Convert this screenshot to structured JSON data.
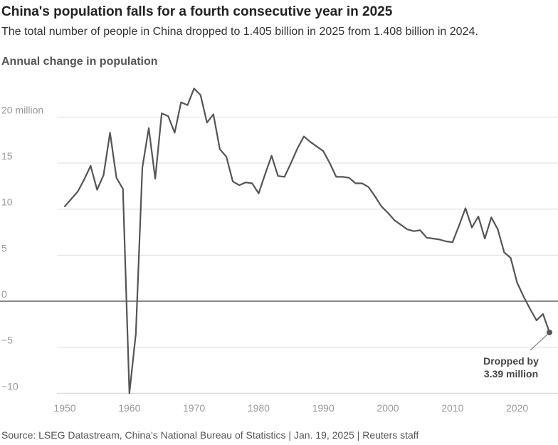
{
  "header": {
    "title": "China's population falls for a fourth consecutive year in 2025",
    "subtitle": "The total number of people in China dropped to 1.405 billion in 2025 from 1.408 billion in 2024."
  },
  "footer": {
    "source": "Source: LSEG Datastream, China's National Bureau of Statistics | Jan. 19, 2025 | Reuters staff"
  },
  "colors": {
    "line": "#555555",
    "grid": "#dddddd",
    "zero": "#444444",
    "tick": "#999999"
  },
  "chart_data": {
    "type": "line",
    "title": "China's population falls for a fourth consecutive year in 2025",
    "ylabel": "Annual change in population",
    "xlim": [
      1950,
      2025
    ],
    "ylim": [
      -10,
      24
    ],
    "grid": true,
    "y_ticks": [
      {
        "value": 20,
        "label": "20 million"
      },
      {
        "value": 15,
        "label": "15"
      },
      {
        "value": 10,
        "label": "10"
      },
      {
        "value": 5,
        "label": "5"
      },
      {
        "value": 0,
        "label": "0"
      },
      {
        "value": -5,
        "label": "−5"
      },
      {
        "value": -10,
        "label": "−10"
      }
    ],
    "x_ticks": [
      {
        "value": 1950,
        "label": "1950"
      },
      {
        "value": 1960,
        "label": "1960"
      },
      {
        "value": 1970,
        "label": "1970"
      },
      {
        "value": 1980,
        "label": "1980"
      },
      {
        "value": 1990,
        "label": "1990"
      },
      {
        "value": 2000,
        "label": "2000"
      },
      {
        "value": 2010,
        "label": "2010"
      },
      {
        "value": 2020,
        "label": "2020"
      }
    ],
    "series": [
      {
        "x": [
          1950,
          1951,
          1952,
          1953,
          1954,
          1955,
          1956,
          1957,
          1958,
          1959,
          1960,
          1961,
          1962,
          1963,
          1964,
          1965,
          1966,
          1967,
          1968,
          1969,
          1970,
          1971,
          1972,
          1973,
          1974,
          1975,
          1976,
          1977,
          1978,
          1979,
          1980,
          1981,
          1982,
          1983,
          1984,
          1985,
          1986,
          1987,
          1988,
          1989,
          1990,
          1991,
          1992,
          1993,
          1994,
          1995,
          1996,
          1997,
          1998,
          1999,
          2000,
          2001,
          2002,
          2003,
          2004,
          2005,
          2006,
          2007,
          2008,
          2009,
          2010,
          2011,
          2012,
          2013,
          2014,
          2015,
          2016,
          2017,
          2018,
          2019,
          2020,
          2021,
          2022,
          2023,
          2024,
          2025
        ],
        "values": [
          10.3,
          11.1,
          11.9,
          13.2,
          14.7,
          12.1,
          13.7,
          18.3,
          13.4,
          12.2,
          -10.0,
          -3.5,
          14.5,
          18.8,
          13.3,
          20.4,
          20.1,
          18.3,
          21.6,
          21.3,
          23.1,
          22.4,
          19.4,
          20.3,
          16.5,
          15.7,
          13.0,
          12.6,
          12.9,
          12.8,
          11.7,
          13.8,
          15.8,
          13.6,
          13.5,
          15.0,
          16.6,
          17.9,
          17.3,
          16.8,
          16.3,
          15.0,
          13.5,
          13.5,
          13.4,
          12.8,
          12.8,
          12.4,
          11.4,
          10.3,
          9.6,
          8.8,
          8.3,
          7.8,
          7.6,
          7.7,
          6.9,
          6.8,
          6.7,
          6.5,
          6.4,
          8.2,
          10.1,
          8.0,
          9.2,
          6.8,
          9.1,
          7.8,
          5.3,
          4.7,
          2.0,
          0.5,
          -0.85,
          -2.08,
          -1.39,
          -3.39
        ]
      }
    ],
    "annotation": {
      "x": 2025,
      "y": -3.39,
      "lines": [
        "Dropped by",
        "3.39 million"
      ]
    }
  }
}
